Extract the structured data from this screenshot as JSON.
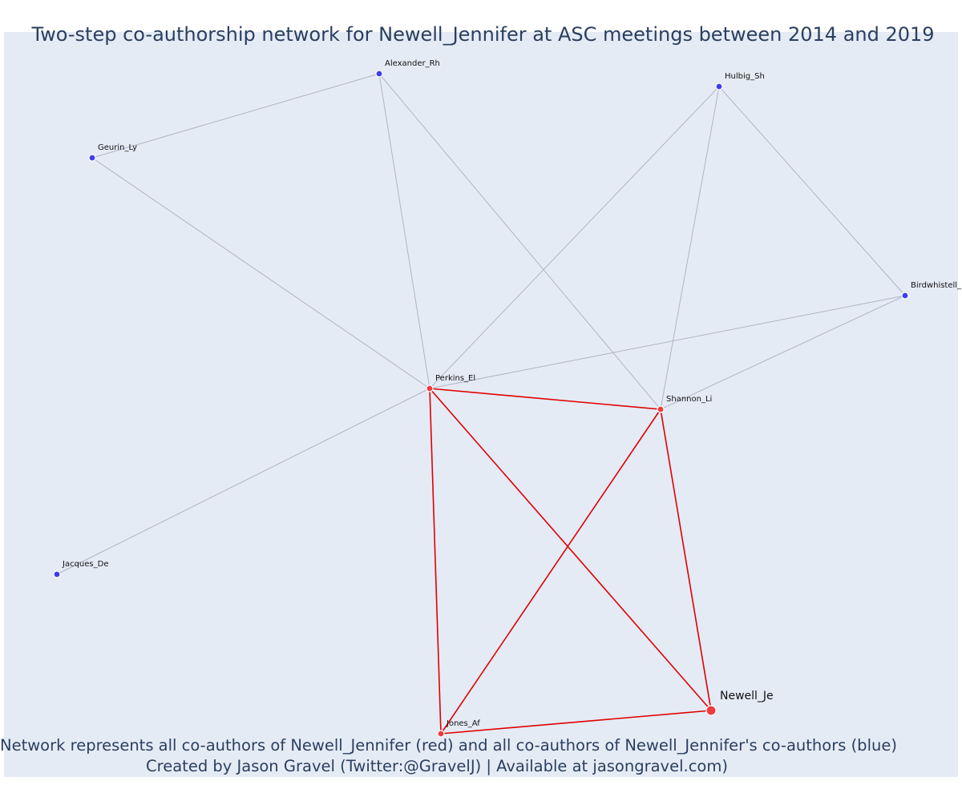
{
  "title": "Two-step co-authorship network for Newell_Jennifer at ASC meetings between 2014 and 2019",
  "footer": {
    "line1": "Network represents all co-authors of Newell_Jennifer (red) and all co-authors of Newell_Jennifer's co-authors (blue)",
    "line2": "Created by Jason Gravel (Twitter:@GravelJ) | Available at jasongravel.com)"
  },
  "colors": {
    "background": "#e5ebf5",
    "first_step_node": "#f23a3a",
    "second_step_node": "#3d3df0",
    "first_step_edge": "#e00000",
    "second_step_edge": "#b0b4c6",
    "text": "#2a3f5f"
  },
  "network": {
    "focal_node": "Newell_Je",
    "nodes": [
      {
        "id": "Newell_Je",
        "group": "focal"
      },
      {
        "id": "Perkins_El",
        "group": "co-author"
      },
      {
        "id": "Shannon_Li",
        "group": "co-author"
      },
      {
        "id": "Jones_Af",
        "group": "co-author"
      },
      {
        "id": "Alexander_Rh",
        "group": "second-step"
      },
      {
        "id": "Hulbig_Sh",
        "group": "second-step"
      },
      {
        "id": "Geurin_Ly",
        "group": "second-step"
      },
      {
        "id": "Birdwhistell_",
        "group": "second-step"
      },
      {
        "id": "Jacques_De",
        "group": "second-step"
      }
    ],
    "edges": [
      {
        "source": "Perkins_El",
        "target": "Shannon_Li",
        "type": "first-step"
      },
      {
        "source": "Perkins_El",
        "target": "Jones_Af",
        "type": "first-step"
      },
      {
        "source": "Perkins_El",
        "target": "Newell_Je",
        "type": "first-step"
      },
      {
        "source": "Shannon_Li",
        "target": "Jones_Af",
        "type": "first-step"
      },
      {
        "source": "Shannon_Li",
        "target": "Newell_Je",
        "type": "first-step"
      },
      {
        "source": "Jones_Af",
        "target": "Newell_Je",
        "type": "first-step"
      },
      {
        "source": "Alexander_Rh",
        "target": "Geurin_Ly",
        "type": "second-step"
      },
      {
        "source": "Alexander_Rh",
        "target": "Perkins_El",
        "type": "second-step"
      },
      {
        "source": "Alexander_Rh",
        "target": "Shannon_Li",
        "type": "second-step"
      },
      {
        "source": "Geurin_Ly",
        "target": "Perkins_El",
        "type": "second-step"
      },
      {
        "source": "Hulbig_Sh",
        "target": "Perkins_El",
        "type": "second-step"
      },
      {
        "source": "Hulbig_Sh",
        "target": "Shannon_Li",
        "type": "second-step"
      },
      {
        "source": "Hulbig_Sh",
        "target": "Birdwhistell_",
        "type": "second-step"
      },
      {
        "source": "Birdwhistell_",
        "target": "Perkins_El",
        "type": "second-step"
      },
      {
        "source": "Birdwhistell_",
        "target": "Shannon_Li",
        "type": "second-step"
      },
      {
        "source": "Jacques_De",
        "target": "Perkins_El",
        "type": "second-step"
      }
    ]
  }
}
